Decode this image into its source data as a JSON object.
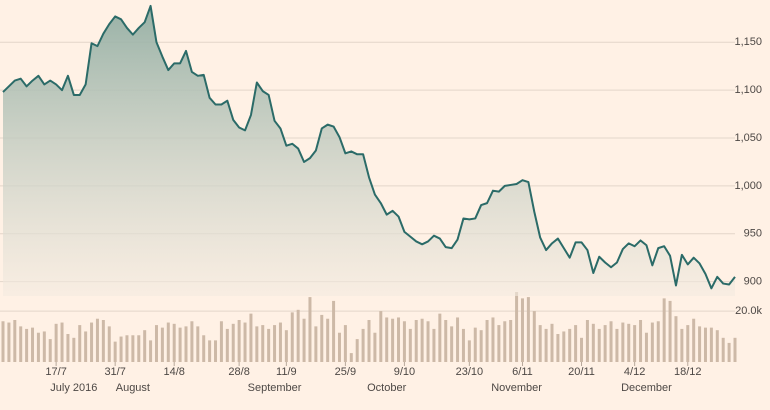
{
  "chart_data": {
    "type": "line",
    "categories": [
      null,
      null,
      null,
      null,
      null,
      null,
      null,
      null,
      null,
      "17/7",
      null,
      null,
      null,
      null,
      null,
      null,
      null,
      null,
      null,
      "31/7",
      null,
      null,
      null,
      null,
      null,
      null,
      null,
      null,
      null,
      "14/8",
      null,
      null,
      null,
      null,
      null,
      null,
      null,
      null,
      null,
      null,
      "28/8",
      null,
      null,
      null,
      null,
      null,
      null,
      null,
      "11/9",
      null,
      null,
      null,
      null,
      null,
      null,
      null,
      null,
      null,
      "25/9",
      null,
      null,
      null,
      null,
      null,
      null,
      null,
      null,
      null,
      "9/10",
      null,
      null,
      null,
      null,
      null,
      null,
      null,
      null,
      null,
      null,
      "23/10",
      null,
      null,
      null,
      null,
      null,
      null,
      null,
      null,
      "6/11",
      null,
      null,
      null,
      null,
      null,
      null,
      null,
      null,
      null,
      "20/11",
      null,
      null,
      null,
      null,
      null,
      null,
      null,
      null,
      "4/12",
      null,
      null,
      null,
      null,
      null,
      null,
      null,
      null,
      "18/12",
      null,
      null,
      null,
      null,
      null,
      null,
      null,
      null
    ],
    "months": [
      null,
      null,
      null,
      null,
      null,
      null,
      null,
      null,
      null,
      null,
      null,
      null,
      "July 2016",
      null,
      null,
      null,
      null,
      null,
      null,
      null,
      null,
      null,
      "August",
      null,
      null,
      null,
      null,
      null,
      null,
      null,
      null,
      null,
      null,
      null,
      null,
      null,
      null,
      null,
      null,
      null,
      null,
      null,
      null,
      null,
      null,
      null,
      "September",
      null,
      null,
      null,
      null,
      null,
      null,
      null,
      null,
      null,
      null,
      null,
      null,
      null,
      null,
      null,
      null,
      null,
      null,
      "October",
      null,
      null,
      null,
      null,
      null,
      null,
      null,
      null,
      null,
      null,
      null,
      null,
      null,
      null,
      null,
      null,
      null,
      null,
      null,
      null,
      null,
      "November",
      null,
      null,
      null,
      null,
      null,
      null,
      null,
      null,
      null,
      null,
      null,
      null,
      null,
      null,
      null,
      null,
      null,
      null,
      null,
      null,
      null,
      "December",
      null,
      null,
      null,
      null,
      null,
      null,
      null,
      null,
      null,
      null,
      null,
      null,
      null,
      null,
      null
    ],
    "series": [
      {
        "color": "#2b6b68",
        "values": [
          1098,
          1104,
          1110,
          1112,
          1104,
          1110,
          1115,
          1106,
          1110,
          1106,
          1100,
          1115,
          1095,
          1095,
          1106,
          1149,
          1146,
          1159,
          1169,
          1177,
          1174,
          1165,
          1158,
          1165,
          1171,
          1188,
          1150,
          1135,
          1121,
          1128,
          1128,
          1141,
          1119,
          1115,
          1116,
          1092,
          1085,
          1085,
          1089,
          1069,
          1061,
          1058,
          1074,
          1108,
          1099,
          1095,
          1068,
          1060,
          1042,
          1044,
          1039,
          1025,
          1029,
          1037,
          1060,
          1064,
          1062,
          1051,
          1034,
          1036,
          1033,
          1033,
          1009,
          991,
          982,
          970,
          974,
          968,
          952,
          947,
          942,
          939,
          942,
          948,
          945,
          936,
          935,
          944,
          966,
          965,
          966,
          980,
          982,
          995,
          994,
          1000,
          1001,
          1002,
          1006,
          1004,
          973,
          946,
          933,
          940,
          945,
          935,
          925,
          941,
          941,
          933,
          909,
          926,
          920,
          915,
          920,
          934,
          940,
          937,
          943,
          938,
          917,
          935,
          937,
          927,
          896,
          928,
          918,
          925,
          919,
          908,
          893,
          905,
          898,
          897,
          905
        ]
      }
    ],
    "ylim": [
      885,
      1190
    ],
    "yticks": [
      900,
      950,
      {
        "value": 1000,
        "label": "1,000"
      },
      {
        "value": 1050,
        "label": "1,050"
      },
      {
        "value": 1100,
        "label": "1,100"
      },
      {
        "value": 1150,
        "label": "1,150"
      }
    ],
    "grid": true,
    "volume": {
      "color": "#cdb9a7",
      "ylim": [
        0,
        27500
      ],
      "yticks": [
        {
          "value": 20000,
          "label": "20.0k"
        }
      ],
      "values": [
        16000,
        15500,
        16500,
        14000,
        13000,
        13500,
        11500,
        12000,
        9000,
        15000,
        15500,
        11000,
        9500,
        14500,
        12000,
        15500,
        17000,
        16500,
        14000,
        8000,
        10000,
        10500,
        10500,
        10500,
        12500,
        8500,
        14500,
        13500,
        15500,
        15000,
        13500,
        14000,
        16000,
        14000,
        10500,
        8500,
        8500,
        16000,
        13000,
        15000,
        16500,
        15500,
        19000,
        14000,
        14500,
        13000,
        14500,
        15500,
        12500,
        19500,
        20500,
        17000,
        25500,
        14000,
        18500,
        17000,
        24000,
        11500,
        14500,
        3500,
        9000,
        13000,
        16500,
        11500,
        20000,
        17500,
        17000,
        17500,
        16000,
        13000,
        16500,
        17000,
        16000,
        13000,
        19000,
        16500,
        14000,
        17500,
        13000,
        8500,
        13500,
        12500,
        16500,
        17500,
        14500,
        16000,
        16500,
        27500,
        25000,
        25500,
        20000,
        14500,
        13000,
        15000,
        11000,
        12000,
        13000,
        14500,
        9500,
        16500,
        15000,
        13000,
        14500,
        16000,
        13000,
        15500,
        15000,
        14500,
        16500,
        11500,
        15500,
        16000,
        25000,
        24000,
        18000,
        13000,
        14500,
        17000,
        14000,
        13500,
        13500,
        12500,
        9500,
        7500,
        9500
      ]
    }
  }
}
